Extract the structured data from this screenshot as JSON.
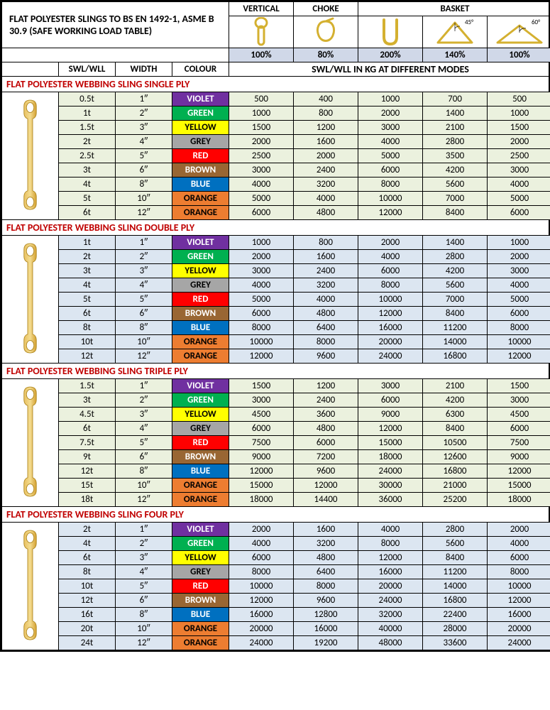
{
  "title": "FLAT POLYESTER SLINGS TO BS EN 1492-1, ASME B 30.9 (SAFE WORKING LOAD TABLE)",
  "modes": {
    "labels": [
      "VERTICAL",
      "CHOKE",
      "BASKET"
    ],
    "percents": [
      "100%",
      "80%",
      "200%",
      "140%",
      "100%"
    ],
    "angles": [
      "",
      "",
      "",
      "45°",
      "60°"
    ]
  },
  "cols": {
    "swl": "SWL/WLL",
    "width": "WIDTH",
    "colour": "COLOUR",
    "header": "SWL/WLL IN KG AT DIFFERENT MODES"
  },
  "colours": [
    {
      "name": "VIOLET",
      "bg": "#7030a0",
      "fg": "#ffffff"
    },
    {
      "name": "GREEN",
      "bg": "#00b050",
      "fg": "#ffffff"
    },
    {
      "name": "YELLOW",
      "bg": "#ffff00",
      "fg": "#000000"
    },
    {
      "name": "GREY",
      "bg": "#a6a6a6",
      "fg": "#000000"
    },
    {
      "name": "RED",
      "bg": "#ff0000",
      "fg": "#ffffff"
    },
    {
      "name": "BROWN",
      "bg": "#996633",
      "fg": "#ffffff"
    },
    {
      "name": "BLUE",
      "bg": "#0070c0",
      "fg": "#ffffff"
    },
    {
      "name": "ORANGE",
      "bg": "#ed7d31",
      "fg": "#000000"
    },
    {
      "name": "ORANGE",
      "bg": "#ed7d31",
      "fg": "#000000"
    }
  ],
  "row_bands": {
    "single": "#ebf1de",
    "double": "#dce6f1",
    "triple": "#ebf1de",
    "four": "#dce6f1"
  },
  "widths": [
    "1″",
    "2″",
    "3″",
    "4″",
    "5″",
    "6″",
    "8″",
    "10″",
    "12″"
  ],
  "sections": [
    {
      "id": "single",
      "title": "FLAT POLYESTER WEBBING SLING SINGLE PLY",
      "swl": [
        "0.5t",
        "1t",
        "1.5t",
        "2t",
        "2.5t",
        "3t",
        "4t",
        "5t",
        "6t"
      ],
      "vals": [
        [
          500,
          400,
          1000,
          700,
          500
        ],
        [
          1000,
          800,
          2000,
          1400,
          1000
        ],
        [
          1500,
          1200,
          3000,
          2100,
          1500
        ],
        [
          2000,
          1600,
          4000,
          2800,
          2000
        ],
        [
          2500,
          2000,
          5000,
          3500,
          2500
        ],
        [
          3000,
          2400,
          6000,
          4200,
          3000
        ],
        [
          4000,
          3200,
          8000,
          5600,
          4000
        ],
        [
          5000,
          4000,
          10000,
          7000,
          5000
        ],
        [
          6000,
          4800,
          12000,
          8400,
          6000
        ]
      ]
    },
    {
      "id": "double",
      "title": "FLAT POLYESTER WEBBING SLING DOUBLE PLY",
      "swl": [
        "1t",
        "2t",
        "3t",
        "4t",
        "5t",
        "6t",
        "8t",
        "10t",
        "12t"
      ],
      "vals": [
        [
          1000,
          800,
          2000,
          1400,
          1000
        ],
        [
          2000,
          1600,
          4000,
          2800,
          2000
        ],
        [
          3000,
          2400,
          6000,
          4200,
          3000
        ],
        [
          4000,
          3200,
          8000,
          5600,
          4000
        ],
        [
          5000,
          4000,
          10000,
          7000,
          5000
        ],
        [
          6000,
          4800,
          12000,
          8400,
          6000
        ],
        [
          8000,
          6400,
          16000,
          11200,
          8000
        ],
        [
          10000,
          8000,
          20000,
          14000,
          10000
        ],
        [
          12000,
          9600,
          24000,
          16800,
          12000
        ]
      ]
    },
    {
      "id": "triple",
      "title": "FLAT POLYESTER WEBBING SLING TRIPLE PLY",
      "swl": [
        "1.5t",
        "3t",
        "4.5t",
        "6t",
        "7.5t",
        "9t",
        "12t",
        "15t",
        "18t"
      ],
      "vals": [
        [
          1500,
          1200,
          3000,
          2100,
          1500
        ],
        [
          3000,
          2400,
          6000,
          4200,
          3000
        ],
        [
          4500,
          3600,
          9000,
          6300,
          4500
        ],
        [
          6000,
          4800,
          12000,
          8400,
          6000
        ],
        [
          7500,
          6000,
          15000,
          10500,
          7500
        ],
        [
          9000,
          7200,
          18000,
          12600,
          9000
        ],
        [
          12000,
          9600,
          24000,
          16800,
          12000
        ],
        [
          15000,
          12000,
          30000,
          21000,
          15000
        ],
        [
          18000,
          14400,
          36000,
          25200,
          18000
        ]
      ]
    },
    {
      "id": "four",
      "title": "FLAT POLYESTER WEBBING SLING FOUR PLY",
      "swl": [
        "2t",
        "4t",
        "6t",
        "8t",
        "10t",
        "12t",
        "16t",
        "20t",
        "24t"
      ],
      "vals": [
        [
          2000,
          1600,
          4000,
          2800,
          2000
        ],
        [
          4000,
          3200,
          8000,
          5600,
          4000
        ],
        [
          6000,
          4800,
          12000,
          8400,
          6000
        ],
        [
          8000,
          6400,
          16000,
          11200,
          8000
        ],
        [
          10000,
          8000,
          20000,
          14000,
          10000
        ],
        [
          12000,
          9600,
          24000,
          16800,
          12000
        ],
        [
          16000,
          12800,
          32000,
          22400,
          16000
        ],
        [
          20000,
          16000,
          40000,
          28000,
          20000
        ],
        [
          24000,
          19200,
          48000,
          33600,
          24000
        ]
      ]
    }
  ]
}
